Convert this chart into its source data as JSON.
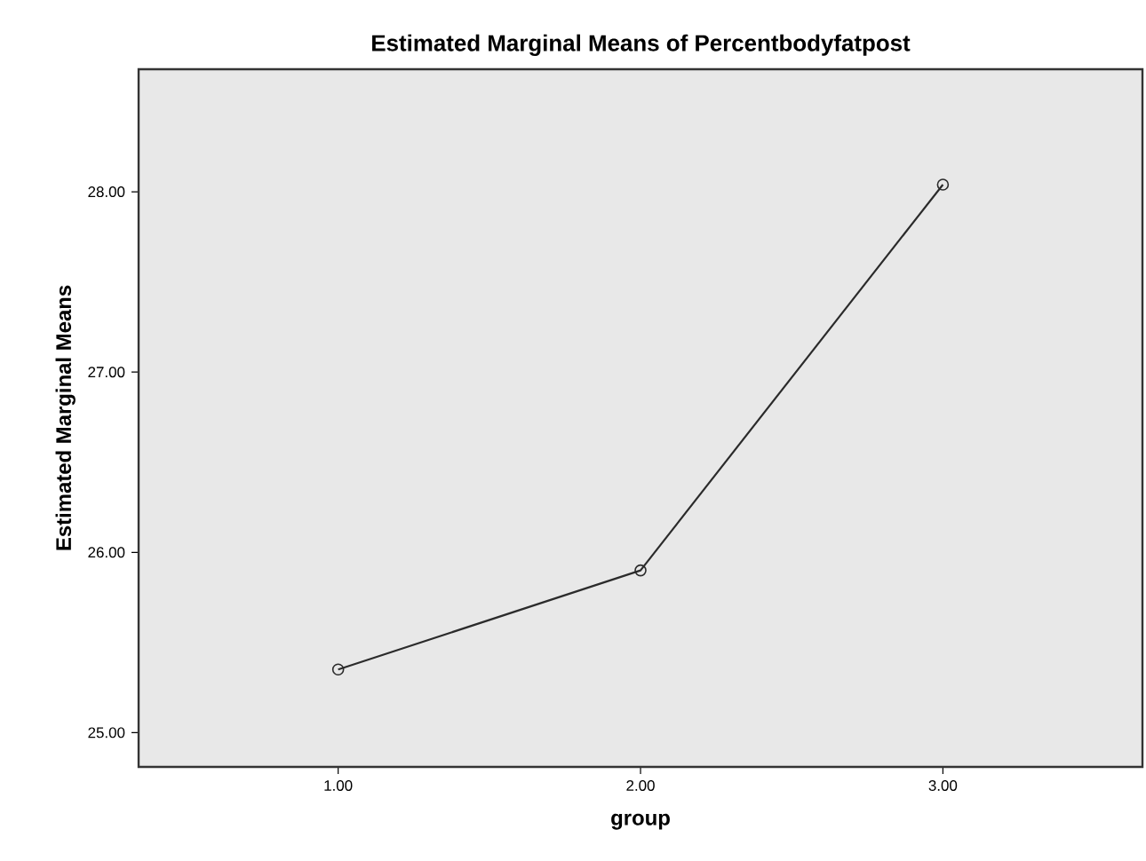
{
  "chart_data": {
    "type": "line",
    "title": "Estimated Marginal Means of Percentbodyfatpost",
    "xlabel": "group",
    "ylabel": "Estimated Marginal Means",
    "categories": [
      "1.00",
      "2.00",
      "3.00"
    ],
    "series": [
      {
        "color": "#2b2b2b",
        "values": [
          25.35,
          25.9,
          28.04
        ]
      }
    ],
    "ylim": [
      24.81,
      28.68
    ],
    "yticks": [
      {
        "value": 25,
        "label": "25.00"
      },
      {
        "value": 26,
        "label": "26.00"
      },
      {
        "value": 27,
        "label": "27.00"
      },
      {
        "value": 28,
        "label": "28.00"
      }
    ],
    "marker": "circle",
    "line_style": "solid"
  }
}
